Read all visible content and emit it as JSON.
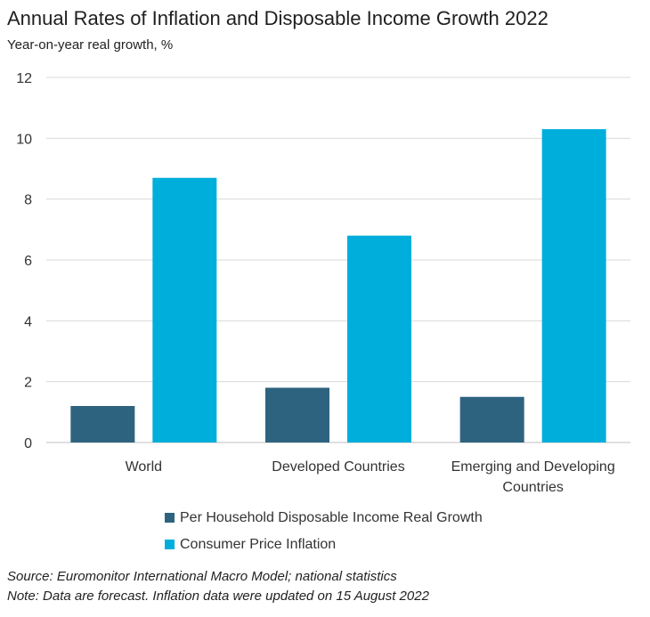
{
  "chart_data": {
    "type": "bar",
    "title": "Annual Rates of Inflation and Disposable Income Growth 2022",
    "subtitle": "Year-on-year real growth, %",
    "categories": [
      [
        "World"
      ],
      [
        "Developed Countries"
      ],
      [
        "Emerging and Developing",
        "Countries"
      ]
    ],
    "series": [
      {
        "name": "Per Household Disposable Income Real Growth",
        "color": "#2e6380",
        "values": [
          1.2,
          1.8,
          1.5
        ]
      },
      {
        "name": "Consumer Price Inflation",
        "color": "#00aedb",
        "values": [
          8.7,
          6.8,
          10.3
        ]
      }
    ],
    "ylim": [
      0,
      12
    ],
    "yticks": [
      0,
      2,
      4,
      6,
      8,
      10,
      12
    ],
    "grid": true,
    "legend_position": "bottom"
  },
  "notes": {
    "source": "Source: Euromonitor International Macro Model; national statistics",
    "note": "Note: Data are forecast. Inflation data were updated on 15 August 2022"
  }
}
